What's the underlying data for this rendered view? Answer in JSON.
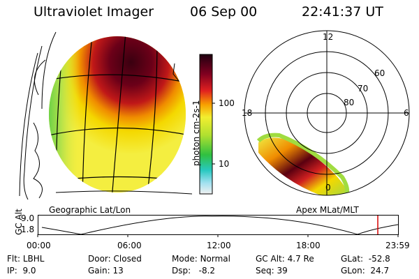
{
  "header": {
    "instrument": "Ultraviolet Imager",
    "date": "06 Sep 00",
    "time": "22:41:37 UT"
  },
  "colorbar": {
    "label": "photon cm-2s-1",
    "ticks": [
      "100",
      "10"
    ]
  },
  "left_panel": {
    "label": "Geographic Lat/Lon"
  },
  "right_panel": {
    "label": "Apex  MLat/MLT",
    "mlt_labels": {
      "top": "12",
      "left": "18",
      "right": "6",
      "bottom": "0"
    },
    "lat_labels": [
      "60",
      "70",
      "80"
    ]
  },
  "timeline": {
    "ylabel": "GC Alt",
    "yticks": [
      "9.0",
      "1.8"
    ],
    "xticks": [
      "00:00",
      "06:00",
      "12:00",
      "18:00",
      "23:59"
    ],
    "marker_color": "#d40000"
  },
  "footer": {
    "row1": [
      {
        "label": "Flt:",
        "value": "LBHL"
      },
      {
        "label": "Door:",
        "value": "Closed"
      },
      {
        "label": "Mode:",
        "value": "Normal"
      },
      {
        "label": "GC Alt:",
        "value": "4.7 Re"
      },
      {
        "label": "GLat:",
        "value": "-52.8"
      }
    ],
    "row2": [
      {
        "label": "IP:",
        "value": "9.0"
      },
      {
        "label": "Gain:",
        "value": "13"
      },
      {
        "label": "Dsp:",
        "value": "-8.2"
      },
      {
        "label": "Seq:",
        "value": "39"
      },
      {
        "label": "GLon:",
        "value": "24.7"
      }
    ]
  }
}
